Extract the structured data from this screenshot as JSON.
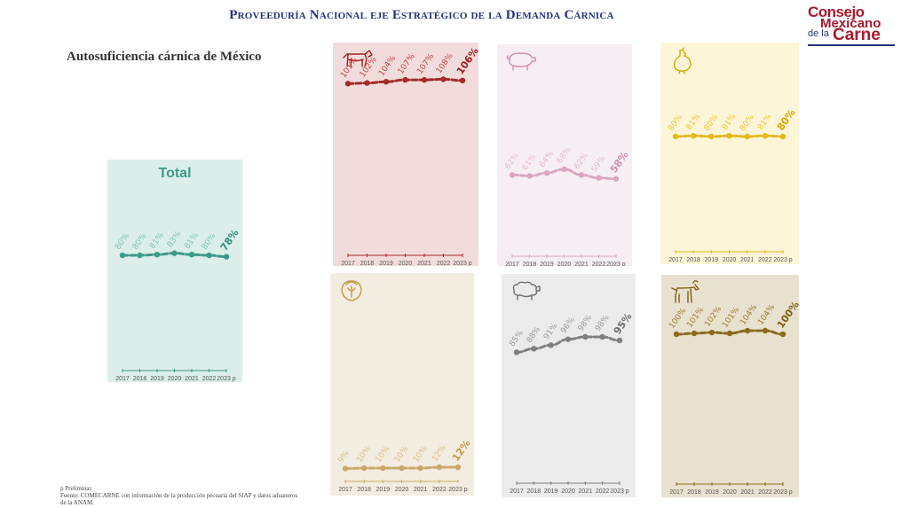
{
  "header": {
    "title": "Proveeduría Nacional eje Estratégico de la Demanda Cárnica",
    "subtitle": "Autosuficiencia cárnica de México"
  },
  "logo": {
    "line1": "Consejo",
    "line2": "Mexicano",
    "line3": "de la",
    "line4": "Carne"
  },
  "footnote": {
    "marker": "p Preliminar.",
    "source": "Fuente: COMECARNE con información de la producción pecuaria del SIAP y datos aduaneros de la ANAM."
  },
  "chart_data": [
    {
      "type": "line",
      "title": "Total",
      "icon": "",
      "categories": [
        "2017",
        "2018",
        "2019",
        "2020",
        "2021",
        "2022",
        "2023 p"
      ],
      "values": [
        80,
        80,
        81,
        83,
        81,
        80,
        78
      ],
      "value_labels": [
        "80%",
        "80%",
        "81%",
        "83%",
        "81%",
        "80%",
        "78%"
      ],
      "colors": {
        "bg": "#dceee9",
        "line": "#3d9a89",
        "label": "#7fc4b5",
        "last": "#2f8c7b"
      }
    },
    {
      "type": "line",
      "title": "",
      "icon": "cow-icon",
      "categories": [
        "2017",
        "2018",
        "2019",
        "2020",
        "2021",
        "2022",
        "2023 p"
      ],
      "values": [
        101,
        102,
        104,
        107,
        107,
        108,
        106
      ],
      "value_labels": [
        "101%",
        "102%",
        "104%",
        "107%",
        "107%",
        "108%",
        "106%"
      ],
      "colors": {
        "bg": "#f2dcdb",
        "line": "#a52a2a",
        "label": "#c04848",
        "last": "#a11e1e"
      }
    },
    {
      "type": "line",
      "title": "",
      "icon": "pig-icon",
      "categories": [
        "2017",
        "2018",
        "2019",
        "2020",
        "2021",
        "2022",
        "2023 p"
      ],
      "values": [
        62,
        61,
        64,
        68,
        62,
        59,
        58
      ],
      "value_labels": [
        "62%",
        "61%",
        "64%",
        "68%",
        "62%",
        "59%",
        "58%"
      ],
      "colors": {
        "bg": "#f6eef3",
        "line": "#d9a7bf",
        "label": "#e0bcd0",
        "last": "#cf8fae"
      }
    },
    {
      "type": "line",
      "title": "",
      "icon": "chicken-icon",
      "categories": [
        "2017",
        "2018",
        "2019",
        "2020",
        "2021",
        "2022",
        "2023 p"
      ],
      "values": [
        80,
        81,
        80,
        81,
        80,
        81,
        80
      ],
      "value_labels": [
        "80%",
        "81%",
        "80%",
        "81%",
        "80%",
        "81%",
        "80%"
      ],
      "colors": {
        "bg": "#fcf5d8",
        "line": "#e2b91c",
        "label": "#ecc83a",
        "last": "#d9a800"
      }
    },
    {
      "type": "line",
      "title": "",
      "icon": "turkey-icon",
      "categories": [
        "2017",
        "2018",
        "2019",
        "2020",
        "2021",
        "2022",
        "2023 p"
      ],
      "values": [
        9,
        10,
        10,
        10,
        10,
        12,
        12
      ],
      "value_labels": [
        "9%",
        "10%",
        "10%",
        "10%",
        "10%",
        "12%",
        "12%"
      ],
      "colors": {
        "bg": "#f3ece0",
        "line": "#caa86a",
        "label": "#d8bf8c",
        "last": "#c39a4e"
      }
    },
    {
      "type": "line",
      "title": "",
      "icon": "sheep-icon",
      "categories": [
        "2017",
        "2018",
        "2019",
        "2020",
        "2021",
        "2022",
        "2023 p"
      ],
      "values": [
        85,
        88,
        91,
        96,
        98,
        98,
        95
      ],
      "value_labels": [
        "85%",
        "88%",
        "91%",
        "96%",
        "98%",
        "98%",
        "95%"
      ],
      "colors": {
        "bg": "#ebebeb",
        "line": "#7f7f7f",
        "label": "#9a9a9a",
        "last": "#6f6f6f"
      }
    },
    {
      "type": "line",
      "title": "",
      "icon": "goat-icon",
      "categories": [
        "2017",
        "2018",
        "2019",
        "2020",
        "2021",
        "2022",
        "2023 p"
      ],
      "values": [
        100,
        101,
        102,
        101,
        104,
        104,
        100
      ],
      "value_labels": [
        "100%",
        "101%",
        "102%",
        "101%",
        "104%",
        "104%",
        "100%"
      ],
      "colors": {
        "bg": "#e9e1d0",
        "line": "#8a6a1c",
        "label": "#9c7e2e",
        "last": "#7d5e10"
      }
    }
  ]
}
